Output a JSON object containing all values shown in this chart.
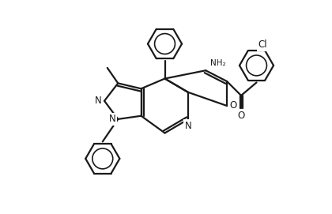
{
  "background_color": "#ffffff",
  "line_color": "#1a1a1a",
  "line_width": 1.6,
  "figsize": [
    4.2,
    2.71
  ],
  "dpi": 100,
  "font_size": 8.5,
  "small_font_size": 7.5,
  "xlim": [
    -1.0,
    9.5
  ],
  "ylim": [
    -1.5,
    7.5
  ]
}
